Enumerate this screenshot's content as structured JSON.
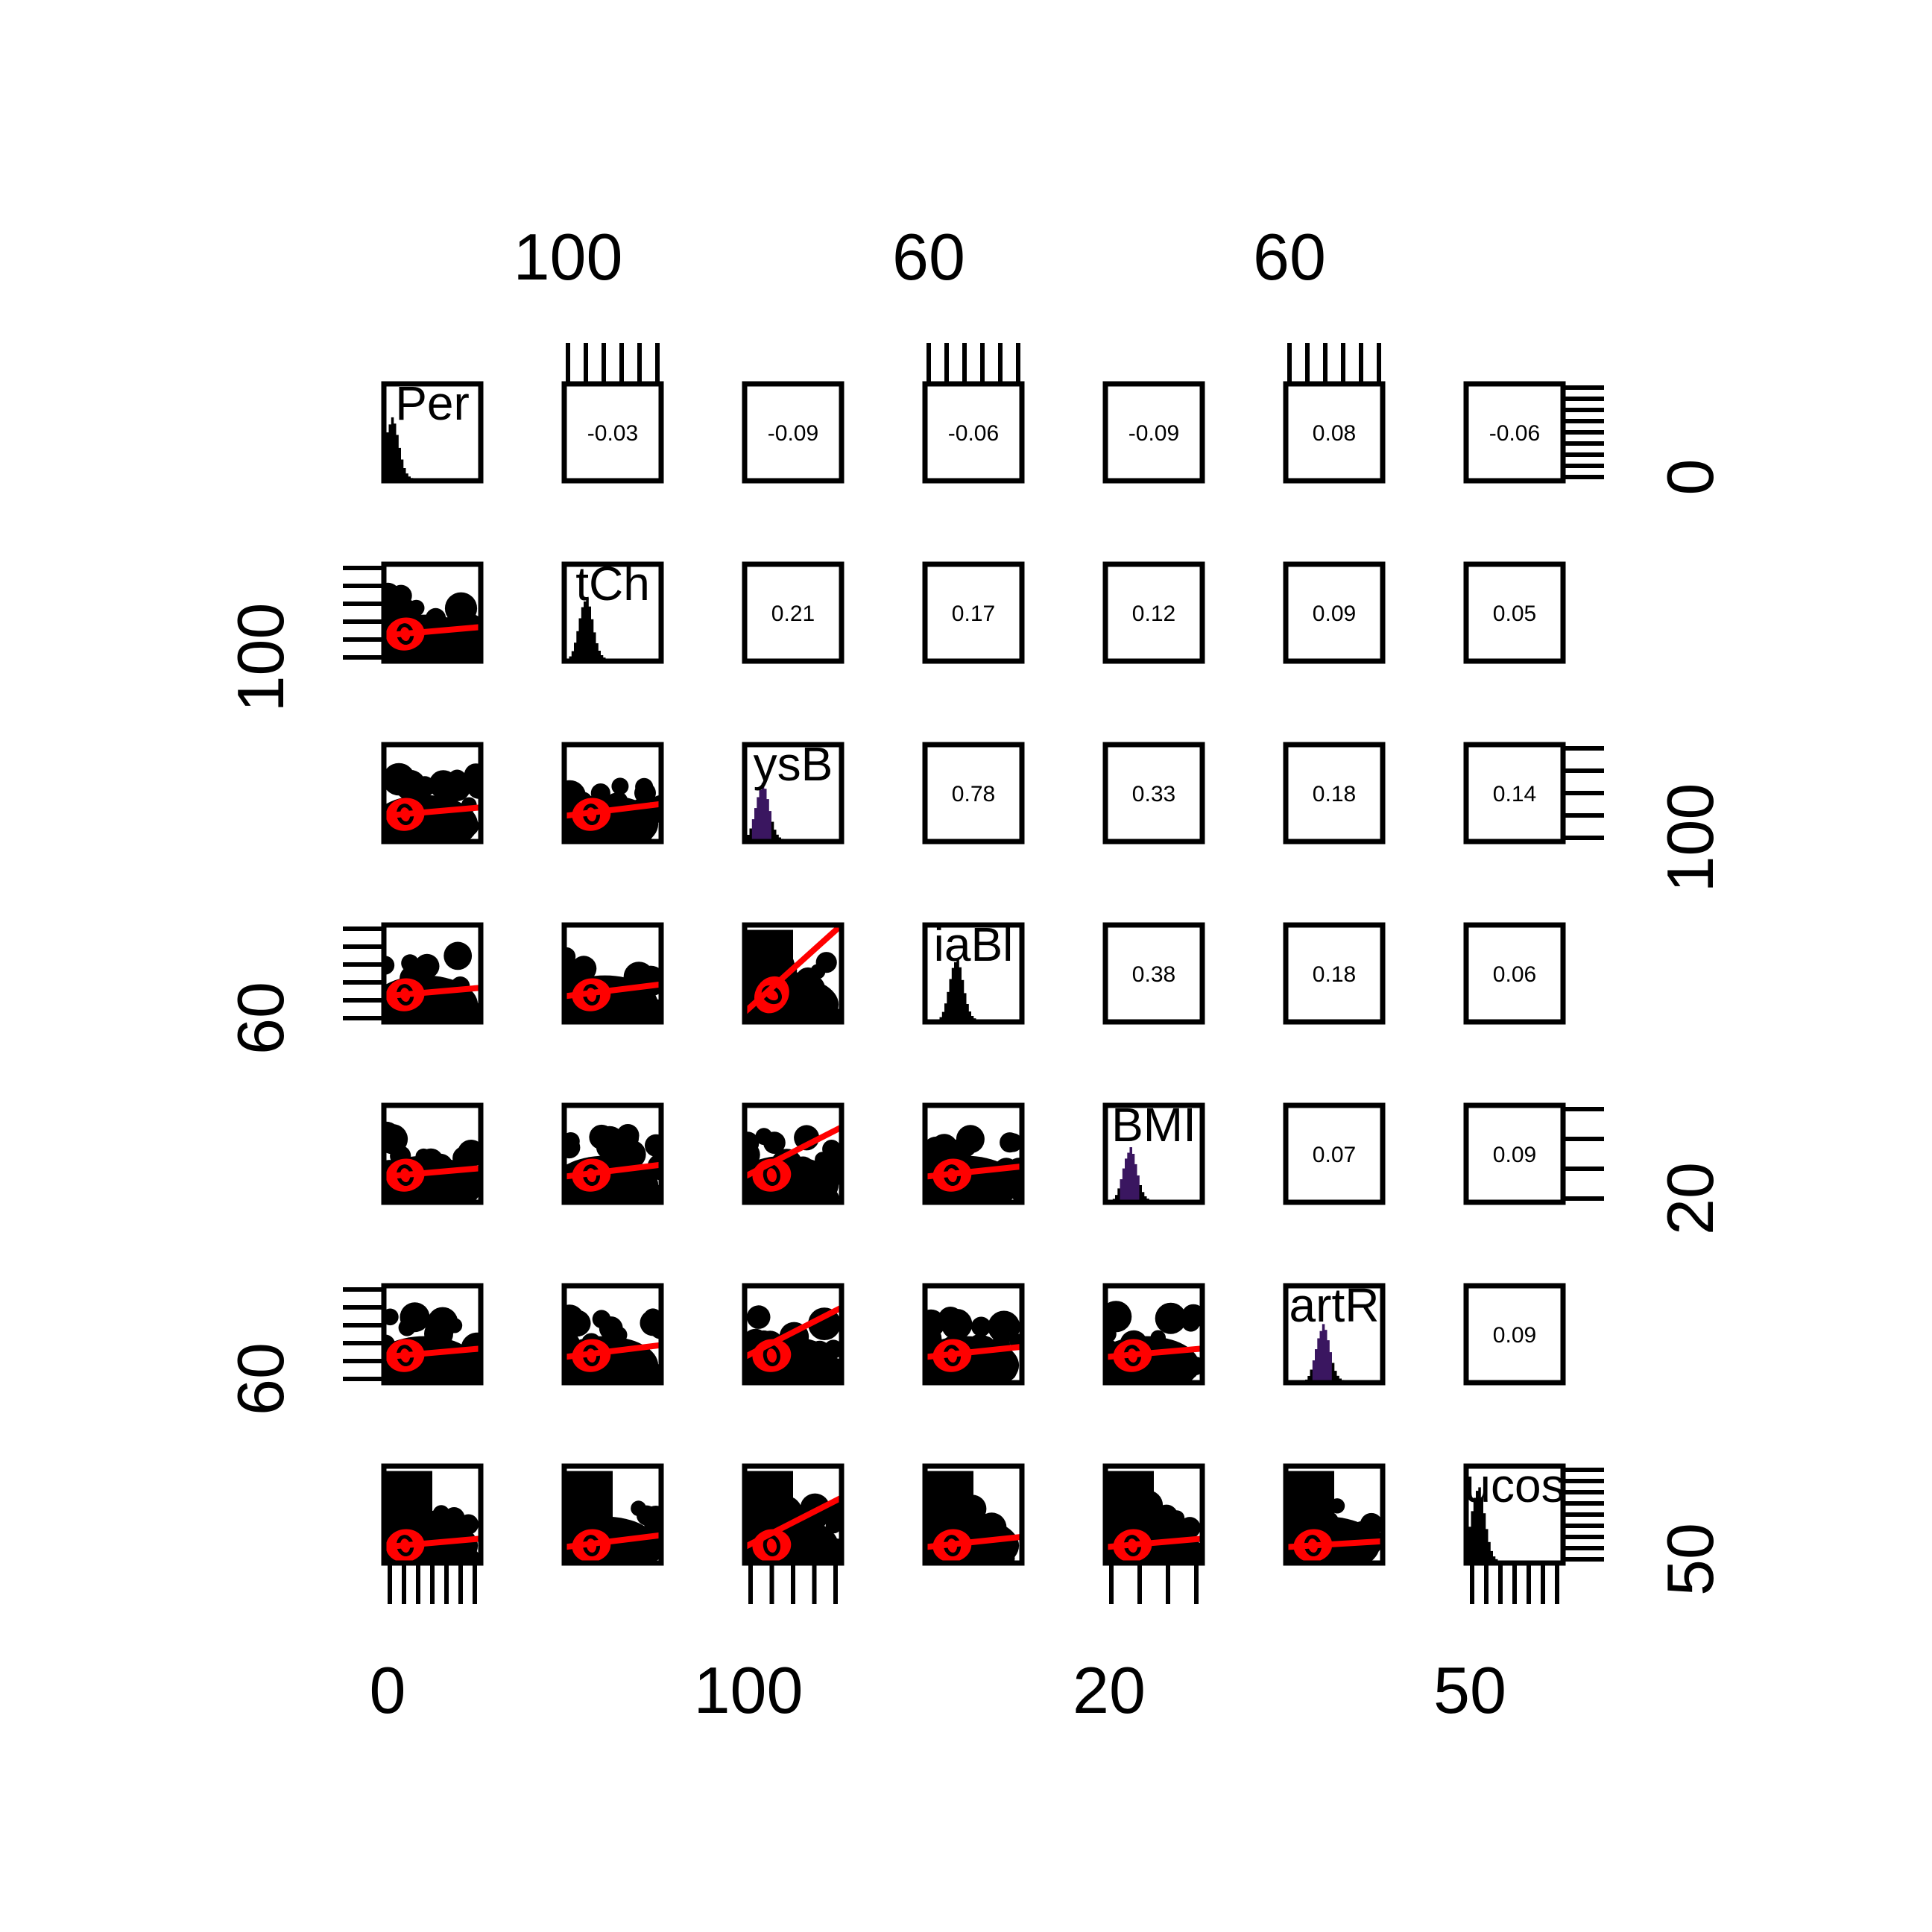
{
  "chart_data": {
    "type": "scatter",
    "subtype": "pairs-panels",
    "variables": [
      "Per",
      "tCh",
      "ysB",
      "iaBl",
      "BMI",
      "artR",
      "ucos"
    ],
    "correlations": [
      {
        "row": 1,
        "col": 2,
        "value": "-0.03"
      },
      {
        "row": 1,
        "col": 3,
        "value": "-0.09"
      },
      {
        "row": 1,
        "col": 4,
        "value": "-0.06"
      },
      {
        "row": 1,
        "col": 5,
        "value": "-0.09"
      },
      {
        "row": 1,
        "col": 6,
        "value": "0.08"
      },
      {
        "row": 1,
        "col": 7,
        "value": "-0.06"
      },
      {
        "row": 2,
        "col": 3,
        "value": "0.21"
      },
      {
        "row": 2,
        "col": 4,
        "value": "0.17"
      },
      {
        "row": 2,
        "col": 5,
        "value": "0.12"
      },
      {
        "row": 2,
        "col": 6,
        "value": "0.09"
      },
      {
        "row": 2,
        "col": 7,
        "value": "0.05"
      },
      {
        "row": 3,
        "col": 4,
        "value": "0.78"
      },
      {
        "row": 3,
        "col": 5,
        "value": "0.33"
      },
      {
        "row": 3,
        "col": 6,
        "value": "0.18"
      },
      {
        "row": 3,
        "col": 7,
        "value": "0.14"
      },
      {
        "row": 4,
        "col": 5,
        "value": "0.38"
      },
      {
        "row": 4,
        "col": 6,
        "value": "0.18"
      },
      {
        "row": 4,
        "col": 7,
        "value": "0.06"
      },
      {
        "row": 5,
        "col": 6,
        "value": "0.07"
      },
      {
        "row": 5,
        "col": 7,
        "value": "0.09"
      },
      {
        "row": 6,
        "col": 7,
        "value": "0.09"
      }
    ],
    "axis_labels": {
      "top": [
        {
          "col": 2,
          "text": "100"
        },
        {
          "col": 4,
          "text": "60"
        },
        {
          "col": 6,
          "text": "60"
        }
      ],
      "bottom": [
        {
          "col": 1,
          "text": "0"
        },
        {
          "col": 3,
          "text": "100"
        },
        {
          "col": 5,
          "text": "20"
        },
        {
          "col": 7,
          "text": "50"
        }
      ],
      "left": [
        {
          "row": 2,
          "text": "100"
        },
        {
          "row": 4,
          "text": "60"
        },
        {
          "row": 6,
          "text": "60"
        }
      ],
      "right": [
        {
          "row": 1,
          "text": "0"
        },
        {
          "row": 3,
          "text": "100"
        },
        {
          "row": 5,
          "text": "20"
        },
        {
          "row": 7,
          "text": "50"
        }
      ]
    },
    "colors": {
      "points": "#000000",
      "fit_line": "#ff0000",
      "ellipse": "#ff0000",
      "histogram": "#000000",
      "histogram_alt": "#3a1660",
      "frame": "#000000"
    }
  }
}
